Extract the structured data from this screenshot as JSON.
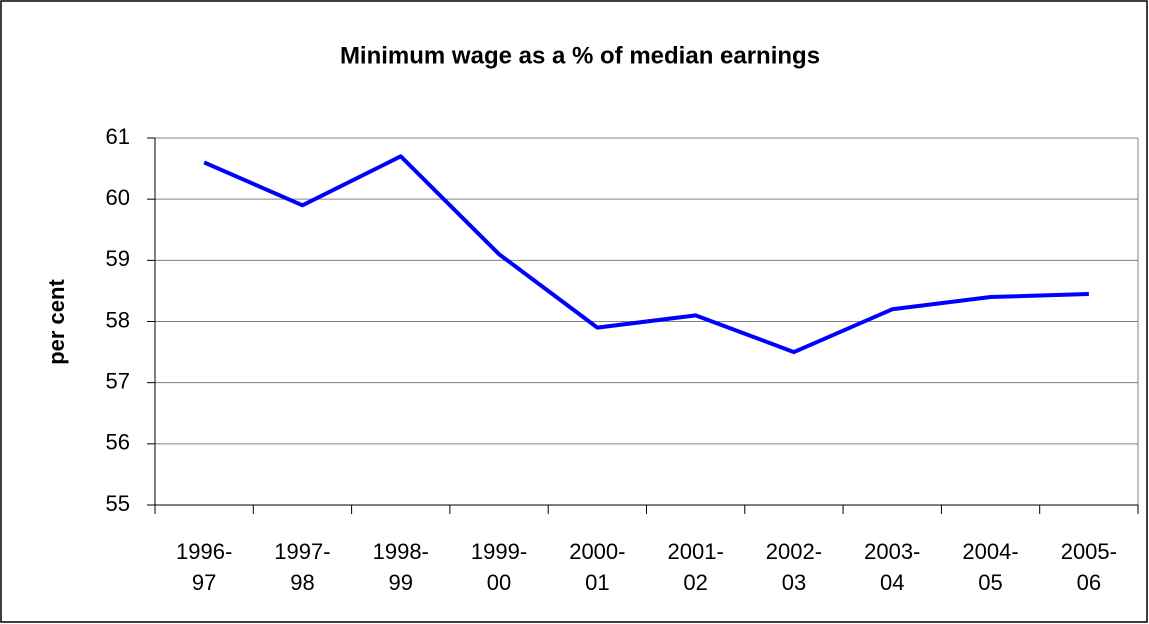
{
  "chart_data": {
    "type": "line",
    "title": "Minimum wage as a % of median earnings",
    "y_label": "per cent",
    "categories": [
      [
        "1996-",
        "97"
      ],
      [
        "1997-",
        "98"
      ],
      [
        "1998-",
        "99"
      ],
      [
        "1999-",
        "00"
      ],
      [
        "2000-",
        "01"
      ],
      [
        "2001-",
        "02"
      ],
      [
        "2002-",
        "03"
      ],
      [
        "2003-",
        "04"
      ],
      [
        "2004-",
        "05"
      ],
      [
        "2005-",
        "06"
      ]
    ],
    "values": [
      60.6,
      59.9,
      60.7,
      59.1,
      57.9,
      58.1,
      57.5,
      58.2,
      58.4,
      58.45
    ],
    "color": "#0000ff",
    "ylim": [
      55,
      61
    ],
    "yticks": [
      55,
      56,
      57,
      58,
      59,
      60,
      61
    ],
    "grid": true
  }
}
